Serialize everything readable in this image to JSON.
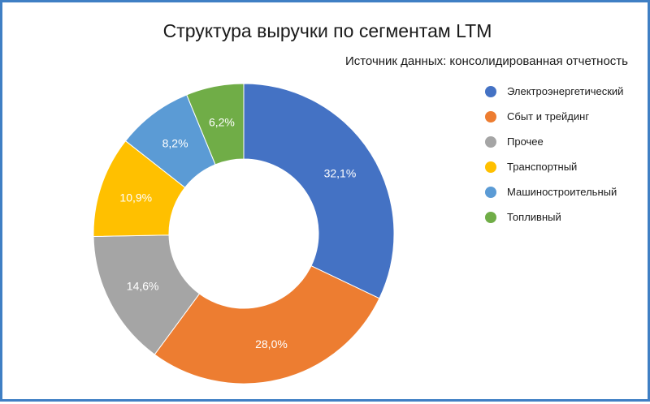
{
  "chart_data": {
    "type": "pie",
    "donut": true,
    "title": "Структура выручки по сегментам LTM",
    "subtitle": "Источник данных: консолидированная отчетность",
    "legend_position": "right",
    "categories": [
      "Электроэнергетический",
      "Сбыт и трейдинг",
      "Прочее",
      "Транспортный",
      "Машиностроительный",
      "Топливный"
    ],
    "values": [
      32.1,
      28.0,
      14.6,
      10.9,
      8.2,
      6.2
    ],
    "labels": [
      "32,1%",
      "28,0%",
      "14,6%",
      "10,9%",
      "8,2%",
      "6,2%"
    ],
    "colors": [
      "#4472c4",
      "#ed7d31",
      "#a5a5a5",
      "#ffc000",
      "#5b9bd5",
      "#70ad47"
    ]
  }
}
